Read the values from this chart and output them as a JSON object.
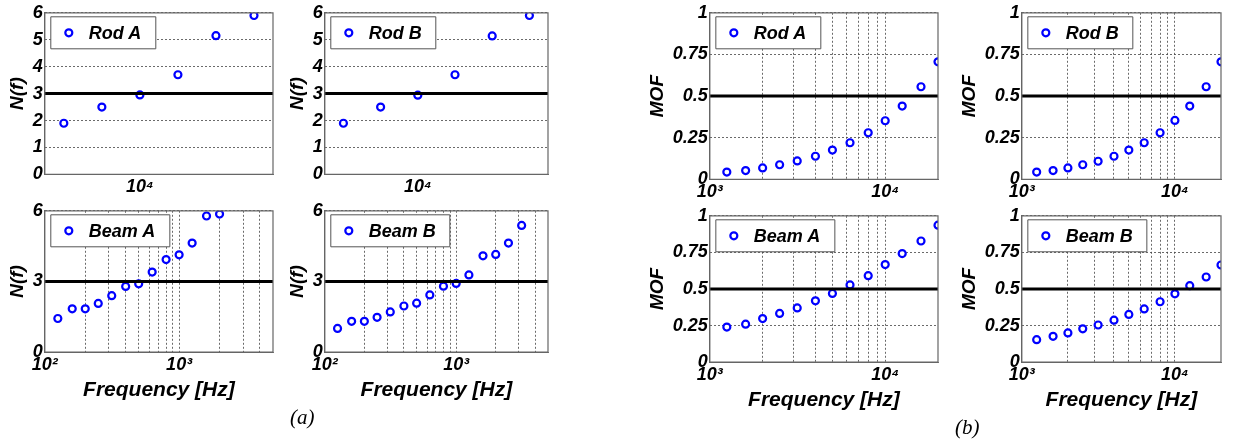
{
  "chart_data": [
    {
      "type": "scatter",
      "ylabel": "N(f)",
      "grid": "y",
      "legend": "top left",
      "marker": "circle",
      "categories": [
        null,
        null,
        "10⁴",
        null,
        null,
        null
      ],
      "ylim": [
        0,
        6
      ],
      "yticks": [
        0,
        1,
        2,
        3,
        4,
        5,
        6
      ],
      "ref_lines": [
        {
          "axis": "y",
          "value": 3,
          "color": "#000000"
        }
      ],
      "series": [
        {
          "name": "Rod A",
          "color": "#0000ff",
          "values": [
            1.9,
            2.5,
            2.95,
            3.7,
            5.15,
            5.9
          ]
        }
      ]
    },
    {
      "type": "scatter",
      "ylabel": "N(f)",
      "grid": "y",
      "legend": "top left",
      "marker": "circle",
      "categories": [
        null,
        null,
        "10⁴",
        null,
        null,
        null
      ],
      "ylim": [
        0,
        6
      ],
      "yticks": [
        0,
        1,
        2,
        3,
        4,
        5,
        6
      ],
      "ref_lines": [
        {
          "axis": "y",
          "value": 3,
          "color": "#000000"
        }
      ],
      "series": [
        {
          "name": "Rod B",
          "color": "#0000ff",
          "values": [
            1.9,
            2.5,
            2.94,
            3.7,
            5.14,
            5.9
          ]
        }
      ]
    },
    {
      "type": "scatter",
      "ylabel": "MOF",
      "log": "x",
      "grid": true,
      "legend": "top left",
      "marker": "circle",
      "xlim": [
        1000,
        20000
      ],
      "xticks": [
        {
          "value": 1000,
          "label": "10³"
        },
        {
          "value": 2000,
          "label": null
        },
        {
          "value": 3000,
          "label": null
        },
        {
          "value": 4000,
          "label": null
        },
        {
          "value": 5000,
          "label": null
        },
        {
          "value": 6000,
          "label": null
        },
        {
          "value": 7000,
          "label": null
        },
        {
          "value": 8000,
          "label": null
        },
        {
          "value": 9000,
          "label": null
        },
        {
          "value": 10000,
          "label": "10⁴"
        }
      ],
      "ylim": [
        0,
        1
      ],
      "yticks": [
        0,
        0.25,
        0.5,
        0.75,
        1
      ],
      "ref_lines": [
        {
          "axis": "y",
          "value": 0.5,
          "color": "#000000"
        }
      ],
      "series": [
        {
          "name": "Rod A",
          "color": "#0000ff",
          "x": [
            1250,
            1600,
            2000,
            2500,
            3150,
            4000,
            5000,
            6300,
            8000,
            10000,
            12500,
            16000,
            20000
          ],
          "values": [
            0.044,
            0.053,
            0.069,
            0.088,
            0.111,
            0.139,
            0.176,
            0.22,
            0.28,
            0.352,
            0.44,
            0.556,
            0.706
          ]
        }
      ]
    },
    {
      "type": "scatter",
      "ylabel": "MOF",
      "log": "x",
      "grid": true,
      "legend": "top left",
      "marker": "circle",
      "xlim": [
        1000,
        20000
      ],
      "xticks": [
        {
          "value": 1000,
          "label": "10³"
        },
        {
          "value": 2000,
          "label": null
        },
        {
          "value": 3000,
          "label": null
        },
        {
          "value": 4000,
          "label": null
        },
        {
          "value": 5000,
          "label": null
        },
        {
          "value": 6000,
          "label": null
        },
        {
          "value": 7000,
          "label": null
        },
        {
          "value": 8000,
          "label": null
        },
        {
          "value": 9000,
          "label": null
        },
        {
          "value": 10000,
          "label": "10⁴"
        }
      ],
      "ylim": [
        0,
        1
      ],
      "yticks": [
        0,
        0.25,
        0.5,
        0.75,
        1
      ],
      "ref_lines": [
        {
          "axis": "y",
          "value": 0.5,
          "color": "#000000"
        }
      ],
      "series": [
        {
          "name": "Rod B",
          "color": "#0000ff",
          "x": [
            1250,
            1600,
            2000,
            2500,
            3150,
            4000,
            5000,
            6300,
            8000,
            10000,
            12500,
            16000,
            20000
          ],
          "values": [
            0.044,
            0.053,
            0.069,
            0.088,
            0.109,
            0.139,
            0.176,
            0.22,
            0.28,
            0.354,
            0.44,
            0.556,
            0.706
          ]
        }
      ]
    },
    {
      "type": "scatter",
      "ylabel": "N(f)",
      "xlabel": "Frequency [Hz]",
      "log": "x",
      "grid": true,
      "legend": "top left",
      "marker": "circle",
      "xlim": [
        100,
        5000
      ],
      "xticks": [
        {
          "value": 100,
          "label": "10²"
        },
        {
          "value": 200,
          "label": null
        },
        {
          "value": 300,
          "label": null
        },
        {
          "value": 400,
          "label": null
        },
        {
          "value": 500,
          "label": null
        },
        {
          "value": 600,
          "label": null
        },
        {
          "value": 700,
          "label": null
        },
        {
          "value": 800,
          "label": null
        },
        {
          "value": 900,
          "label": null
        },
        {
          "value": 1000,
          "label": "10³"
        },
        {
          "value": 2000,
          "label": null
        },
        {
          "value": 3000,
          "label": null
        },
        {
          "value": 4000,
          "label": null
        }
      ],
      "ylim": [
        0,
        6
      ],
      "yticks": [
        0,
        3,
        6
      ],
      "ref_lines": [
        {
          "axis": "y",
          "value": 3,
          "color": "#000000"
        }
      ],
      "annotations": [
        "(a)"
      ],
      "series": [
        {
          "name": "Beam A",
          "color": "#0000ff",
          "x": [
            125,
            160,
            200,
            250,
            315,
            400,
            500,
            630,
            800,
            1000,
            1250,
            1600,
            2000
          ],
          "values": [
            1.43,
            1.84,
            1.84,
            2.07,
            2.4,
            2.79,
            2.9,
            3.4,
            3.93,
            4.13,
            4.63,
            5.78,
            5.86
          ]
        }
      ]
    },
    {
      "type": "scatter",
      "ylabel": "N(f)",
      "xlabel": "Frequency [Hz]",
      "log": "x",
      "grid": true,
      "legend": "top left",
      "marker": "circle",
      "xlim": [
        100,
        5000
      ],
      "xticks": [
        {
          "value": 100,
          "label": "10²"
        },
        {
          "value": 200,
          "label": null
        },
        {
          "value": 300,
          "label": null
        },
        {
          "value": 400,
          "label": null
        },
        {
          "value": 500,
          "label": null
        },
        {
          "value": 600,
          "label": null
        },
        {
          "value": 700,
          "label": null
        },
        {
          "value": 800,
          "label": null
        },
        {
          "value": 900,
          "label": null
        },
        {
          "value": 1000,
          "label": "10³"
        },
        {
          "value": 2000,
          "label": null
        },
        {
          "value": 3000,
          "label": null
        },
        {
          "value": 4000,
          "label": null
        }
      ],
      "ylim": [
        0,
        6
      ],
      "yticks": [
        0,
        3,
        6
      ],
      "ref_lines": [
        {
          "axis": "y",
          "value": 3,
          "color": "#000000"
        }
      ],
      "series": [
        {
          "name": "Beam B",
          "color": "#0000ff",
          "x": [
            125,
            160,
            200,
            250,
            315,
            400,
            500,
            630,
            800,
            1000,
            1250,
            1600,
            2000,
            2500,
            3150
          ],
          "values": [
            1.01,
            1.31,
            1.31,
            1.48,
            1.71,
            1.96,
            2.08,
            2.43,
            2.8,
            2.92,
            3.28,
            4.09,
            4.15,
            4.63,
            5.38
          ]
        }
      ]
    },
    {
      "type": "scatter",
      "ylabel": "MOF",
      "xlabel": "Frequency [Hz]",
      "log": "x",
      "grid": true,
      "legend": "top left",
      "marker": "circle",
      "xlim": [
        1000,
        20000
      ],
      "xticks": [
        {
          "value": 1000,
          "label": "10³"
        },
        {
          "value": 2000,
          "label": null
        },
        {
          "value": 3000,
          "label": null
        },
        {
          "value": 4000,
          "label": null
        },
        {
          "value": 5000,
          "label": null
        },
        {
          "value": 6000,
          "label": null
        },
        {
          "value": 7000,
          "label": null
        },
        {
          "value": 8000,
          "label": null
        },
        {
          "value": 9000,
          "label": null
        },
        {
          "value": 10000,
          "label": "10⁴"
        }
      ],
      "ylim": [
        0,
        1
      ],
      "yticks": [
        0,
        0.25,
        0.5,
        0.75,
        1
      ],
      "ref_lines": [
        {
          "axis": "y",
          "value": 0.5,
          "color": "#000000"
        }
      ],
      "annotations": [
        "(b)"
      ],
      "series": [
        {
          "name": "Beam A",
          "color": "#0000ff",
          "x": [
            1250,
            1600,
            2000,
            2500,
            3150,
            4000,
            5000,
            6300,
            8000,
            10000,
            12500,
            16000,
            20000
          ],
          "values": [
            0.24,
            0.26,
            0.298,
            0.333,
            0.371,
            0.419,
            0.47,
            0.528,
            0.591,
            0.667,
            0.742,
            0.828,
            0.936
          ]
        }
      ]
    },
    {
      "type": "scatter",
      "ylabel": "MOF",
      "xlabel": "Frequency [Hz]",
      "log": "x",
      "grid": true,
      "legend": "top left",
      "marker": "circle",
      "xlim": [
        1000,
        20000
      ],
      "xticks": [
        {
          "value": 1000,
          "label": "10³"
        },
        {
          "value": 2000,
          "label": null
        },
        {
          "value": 3000,
          "label": null
        },
        {
          "value": 4000,
          "label": null
        },
        {
          "value": 5000,
          "label": null
        },
        {
          "value": 6000,
          "label": null
        },
        {
          "value": 7000,
          "label": null
        },
        {
          "value": 8000,
          "label": null
        },
        {
          "value": 9000,
          "label": null
        },
        {
          "value": 10000,
          "label": "10⁴"
        }
      ],
      "ylim": [
        0,
        1
      ],
      "yticks": [
        0,
        0.25,
        0.5,
        0.75,
        1
      ],
      "ref_lines": [
        {
          "axis": "y",
          "value": 0.5,
          "color": "#000000"
        }
      ],
      "series": [
        {
          "name": "Beam B",
          "color": "#0000ff",
          "x": [
            1250,
            1600,
            2000,
            2500,
            3150,
            4000,
            5000,
            6300,
            8000,
            10000,
            12500,
            16000,
            20000
          ],
          "values": [
            0.154,
            0.177,
            0.2,
            0.228,
            0.254,
            0.287,
            0.326,
            0.364,
            0.413,
            0.467,
            0.523,
            0.582,
            0.664
          ]
        }
      ]
    }
  ]
}
